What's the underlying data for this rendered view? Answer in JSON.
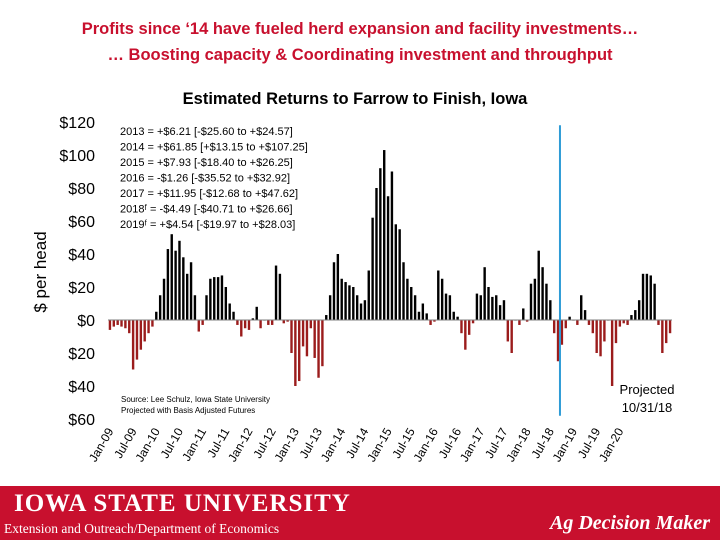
{
  "header": {
    "line1": "Profits since ‘14 have fueled herd expansion and facility investments…",
    "line2": "… Boosting capacity & Coordinating investment and throughput"
  },
  "footer": {
    "logo_text": "IOWA STATE UNIVERSITY",
    "department": "Extension and Outreach/Department of Economics",
    "brand": "Ag Decision Maker"
  },
  "colors": {
    "accent": "#c8102e",
    "bar_dark": "#000000",
    "bar_red": "#9b1c1c",
    "projection_line": "#2e9bd6"
  },
  "chart_data": {
    "type": "bar",
    "title": "Estimated Returns to Farrow to Finish, Iowa",
    "ylabel": "$ per head",
    "ylim": [
      -60,
      120
    ],
    "yticks": [
      120,
      100,
      80,
      60,
      40,
      20,
      0,
      -20,
      -40,
      -60
    ],
    "ytick_labels": [
      "$120",
      "$100",
      "$80",
      "$60",
      "$40",
      "$20",
      "$0",
      "$20",
      "$40",
      "$60"
    ],
    "x_start": "Jan-09",
    "xtick_labels": [
      "Jan-09",
      "Jul-09",
      "Jan-10",
      "Jul-10",
      "Jan-11",
      "Jul-11",
      "Jan-12",
      "Jul-12",
      "Jan-13",
      "Jul-13",
      "Jan-14",
      "Jul-14",
      "Jan-15",
      "Jul-15",
      "Jan-16",
      "Jul-16",
      "Jan-17",
      "Jul-17",
      "Jan-18",
      "Jul-18",
      "Jan-19",
      "Jul-19",
      "Jan-20"
    ],
    "values": [
      -6,
      -4,
      -3,
      -4,
      -5,
      -8,
      -30,
      -24,
      -18,
      -13,
      -8,
      -4,
      5,
      15,
      25,
      43,
      52,
      42,
      48,
      38,
      28,
      35,
      15,
      -7,
      -3,
      15,
      25,
      26,
      26,
      27,
      20,
      10,
      5,
      -3,
      -10,
      -5,
      -6,
      1,
      8,
      -5,
      0,
      -3,
      -3,
      33,
      28,
      -2,
      -1,
      -20,
      -40,
      -37,
      -16,
      -22,
      -5,
      -23,
      -35,
      -28,
      3,
      15,
      35,
      40,
      25,
      23,
      21,
      20,
      15,
      10,
      12,
      30,
      62,
      80,
      92,
      103,
      75,
      90,
      58,
      55,
      35,
      25,
      20,
      15,
      5,
      10,
      4,
      -3,
      -1,
      30,
      25,
      16,
      15,
      5,
      2,
      -8,
      -18,
      -9,
      -2,
      16,
      15,
      32,
      20,
      14,
      15,
      9,
      12,
      -13,
      -20,
      0,
      -3,
      7,
      -1,
      22,
      25,
      42,
      32,
      22,
      12,
      -8,
      -25,
      -15,
      -5,
      2,
      0,
      -3,
      15,
      6,
      -3,
      -8,
      -20,
      -22,
      -13,
      0,
      -40,
      -14,
      -4,
      -2,
      -3,
      3,
      6,
      12,
      28,
      28,
      27,
      22,
      -3,
      -20,
      -14,
      -8
    ],
    "projected_from_index": 117,
    "annotations": {
      "summary": [
        "2013 = +$6.21    [-$25.60 to +$24.57]",
        "2014 = +$61.85  [+$13.15 to +$107.25]",
        "2015 = +$7.93    [-$18.40 to +$26.25]",
        "2016 = -$1.26     [-$35.52 to +$32.92]",
        "2017 = +$11.95  [-$12.68 to +$47.62]",
        "2018ᶠ = -$4.49    [-$40.71 to +$26.66]",
        "2019ᶠ = +$4.54   [-$19.97 to +$28.03]"
      ],
      "source_line1": "Source: Lee Schulz, Iowa State University",
      "source_line2": "Projected with Basis Adjusted Futures",
      "projected_label1": "Projected",
      "projected_label2": "10/31/18"
    },
    "grid": false,
    "legend": "none"
  }
}
